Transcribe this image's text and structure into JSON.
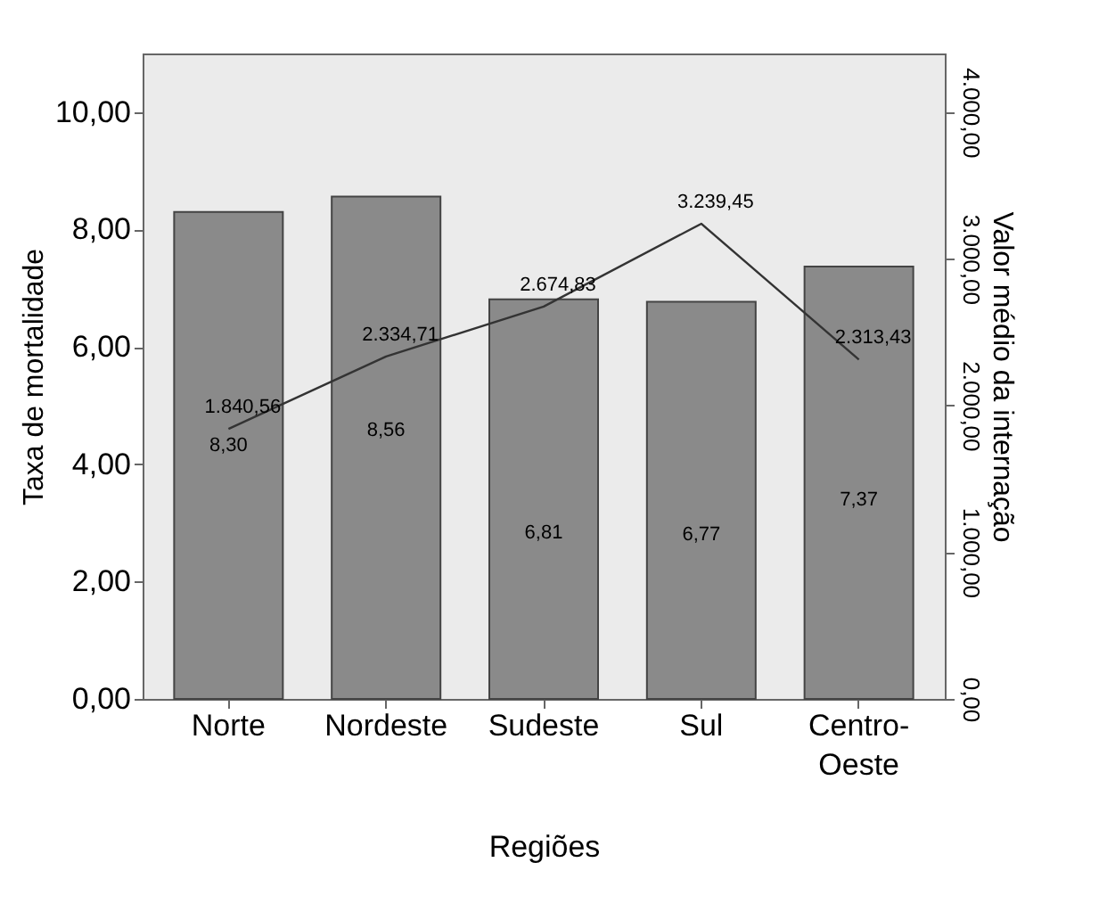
{
  "chart_data": {
    "type": "bar",
    "xlabel": "Regiões",
    "ylabel": "Taxa de mortalidade",
    "y2label": "Valor médio da internação",
    "categories": [
      "Norte",
      "Nordeste",
      "Sudeste",
      "Sul",
      "Centro-Oeste"
    ],
    "series": [
      {
        "color": "#8a8a8a",
        "values": [
          8.3,
          8.56,
          6.81,
          6.77,
          7.37
        ],
        "value_labels": [
          "8,30",
          "8,56",
          "6,81",
          "6,77",
          "7,37"
        ]
      },
      {
        "type": "line",
        "axis": "y2",
        "color": "#333333",
        "values": [
          1840.56,
          2334.71,
          2674.83,
          3239.45,
          2313.43
        ],
        "value_labels": [
          "1.840,56",
          "2.334,71",
          "2.674,83",
          "3.239,45",
          "2.313,43"
        ]
      }
    ],
    "ylim": [
      0,
      11
    ],
    "yticks": [
      {
        "value": 0,
        "label": "0,00"
      },
      {
        "value": 2,
        "label": "2,00"
      },
      {
        "value": 4,
        "label": "4,00"
      },
      {
        "value": 6,
        "label": "6,00"
      },
      {
        "value": 8,
        "label": "8,00"
      },
      {
        "value": 10,
        "label": "10,00"
      }
    ],
    "y2lim": [
      0,
      4400
    ],
    "y2ticks": [
      {
        "value": 0,
        "label": "0,00"
      },
      {
        "value": 1000,
        "label": "1.000,00"
      },
      {
        "value": 2000,
        "label": "2.000,00"
      },
      {
        "value": 3000,
        "label": "3.000,00"
      },
      {
        "value": 4000,
        "label": "4.000,00"
      }
    ],
    "grid": false,
    "marker": "none",
    "line_style": "solid"
  }
}
